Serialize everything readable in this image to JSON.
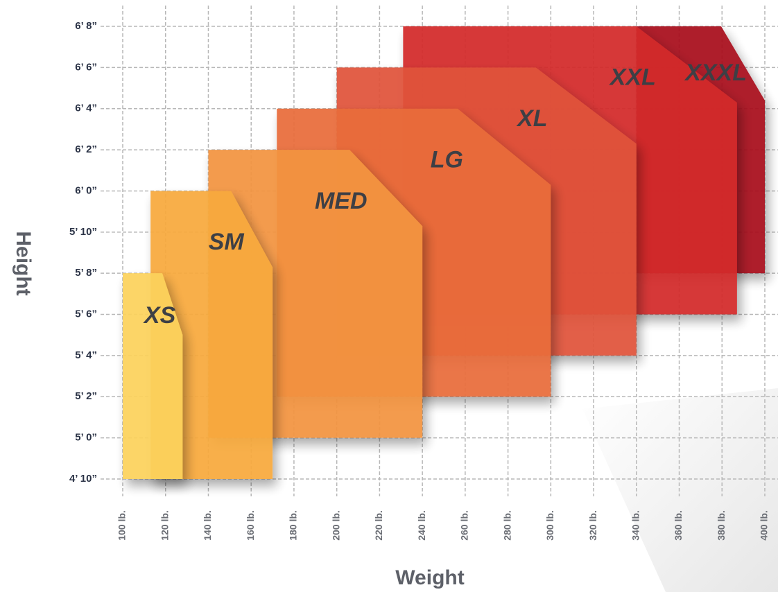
{
  "chart_data": {
    "type": "sizechart",
    "x_label": "Weight",
    "y_label": "Height",
    "xlim": [
      100,
      400
    ],
    "ylim": [
      58,
      80
    ],
    "grid": true,
    "xticks": [
      {
        "value": 100,
        "label": "100 lb."
      },
      {
        "value": 120,
        "label": "120 lb."
      },
      {
        "value": 140,
        "label": "140 lb."
      },
      {
        "value": 160,
        "label": "160 lb."
      },
      {
        "value": 180,
        "label": "180 lb."
      },
      {
        "value": 200,
        "label": "200 lb."
      },
      {
        "value": 220,
        "label": "220 lb."
      },
      {
        "value": 240,
        "label": "240 lb."
      },
      {
        "value": 260,
        "label": "260 lb."
      },
      {
        "value": 280,
        "label": "280 lb."
      },
      {
        "value": 300,
        "label": "300 lb."
      },
      {
        "value": 320,
        "label": "320 lb."
      },
      {
        "value": 340,
        "label": "340 lb."
      },
      {
        "value": 360,
        "label": "360 lb."
      },
      {
        "value": 380,
        "label": "380 lb."
      },
      {
        "value": 400,
        "label": "400 lb."
      }
    ],
    "yticks": [
      {
        "value": 58,
        "label": "4’ 10”"
      },
      {
        "value": 60,
        "label": "5’ 0”"
      },
      {
        "value": 62,
        "label": "5’ 2”"
      },
      {
        "value": 64,
        "label": "5’ 4”"
      },
      {
        "value": 66,
        "label": "5’ 6”"
      },
      {
        "value": 68,
        "label": "5’ 8”"
      },
      {
        "value": 70,
        "label": "5’ 10”"
      },
      {
        "value": 72,
        "label": "6’ 0”"
      },
      {
        "value": 74,
        "label": "6’ 2”"
      },
      {
        "value": 76,
        "label": "6’ 4”"
      },
      {
        "value": 78,
        "label": "6’ 6”"
      },
      {
        "value": 80,
        "label": "6’ 8”"
      }
    ],
    "series": [
      {
        "name": "XXXL",
        "color": "#a80d1c",
        "weight": [
          340,
          400
        ],
        "height": [
          68,
          80
        ]
      },
      {
        "name": "XXL",
        "color": "#d3292b",
        "weight": [
          231,
          387
        ],
        "height": [
          66,
          80
        ]
      },
      {
        "name": "XL",
        "color": "#e0523a",
        "weight": [
          200,
          340
        ],
        "height": [
          64,
          78
        ]
      },
      {
        "name": "LG",
        "color": "#e96c3a",
        "weight": [
          172,
          300
        ],
        "height": [
          62,
          76
        ]
      },
      {
        "name": "MED",
        "color": "#f39440",
        "weight": [
          140,
          240
        ],
        "height": [
          60,
          74
        ]
      },
      {
        "name": "SM",
        "color": "#f8aa3e",
        "weight": [
          113,
          170
        ],
        "height": [
          58,
          72
        ]
      },
      {
        "name": "XS",
        "color": "#fcd25b",
        "weight": [
          100,
          128
        ],
        "height": [
          58,
          68
        ]
      }
    ]
  }
}
